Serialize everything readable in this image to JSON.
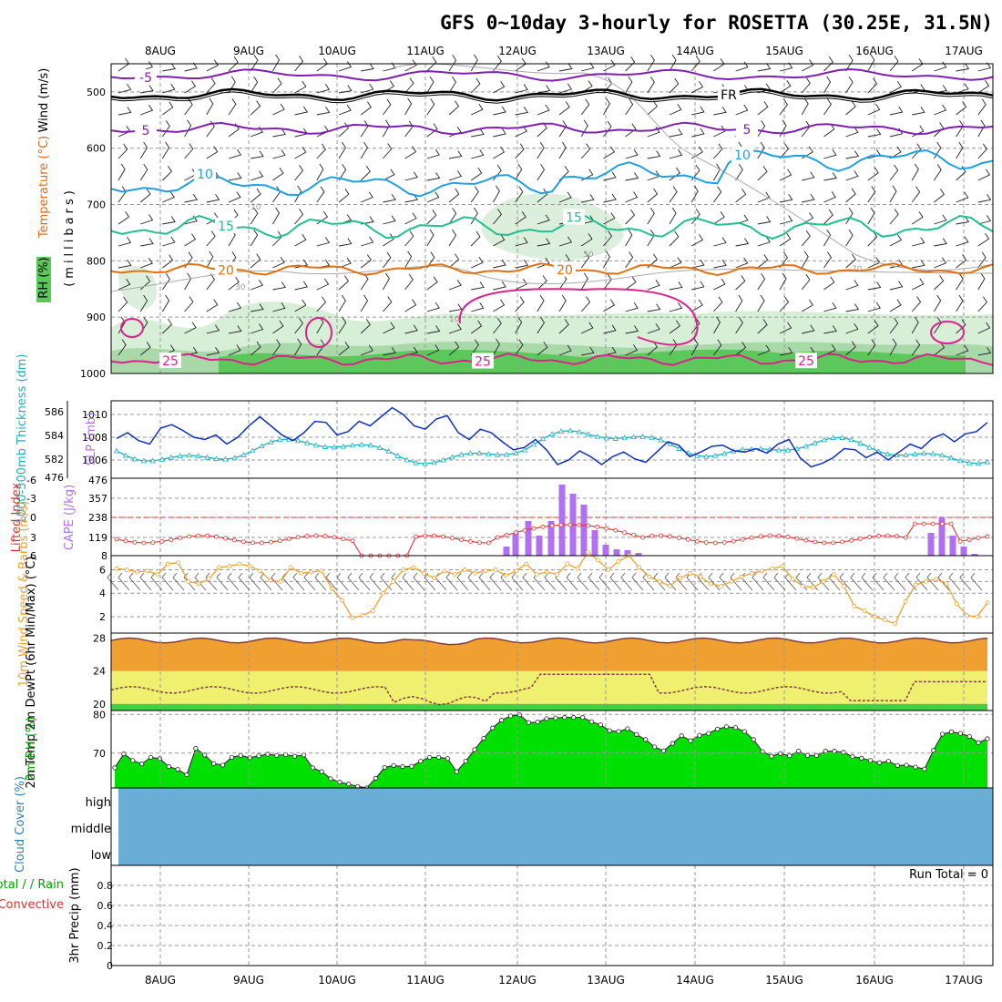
{
  "title": "GFS 0~10day 3-hourly for ROSETTA (30.25E, 31.5N)",
  "dates": [
    "8AUG",
    "9AUG",
    "10AUG",
    "11AUG",
    "12AUG",
    "13AUG",
    "14AUG",
    "15AUG",
    "16AUG",
    "17AUG"
  ],
  "colors": {
    "temp_label": "#e06a1a",
    "wind_label": "#000000",
    "rh_label": "#00a000",
    "slp": "#1030c0",
    "thickness": "#20b0c0",
    "lifted": "#e03030",
    "cape": "#b070f0",
    "wind10": "#f0a030",
    "t2m": "#f0a030",
    "dew": "#f0f070",
    "rh2m": "#00e000",
    "cloud": "#6aaed6",
    "precip_total": "#00a000",
    "precip_conv": "#e03030"
  },
  "chart_data": [
    {
      "type": "contour",
      "panel": "upper-air",
      "ylabel_parts": [
        "RH (%)",
        "Temperature (°C)",
        "Wind (m/s)"
      ],
      "ylabel_units": "(millibars)",
      "yticks": [
        500,
        600,
        700,
        800,
        900,
        1000
      ],
      "ylim": [
        450,
        1000
      ],
      "temperature_contours": [
        {
          "label": "-5",
          "color": "#8020b0",
          "level_mb": 470
        },
        {
          "label": "FR",
          "color": "#000000",
          "level_mb": 505
        },
        {
          "label": "5",
          "color": "#8020b0",
          "level_mb": 565
        },
        {
          "label": "10",
          "color": "#20a0e0",
          "level_mb": 665
        },
        {
          "label": "15",
          "color": "#20c090",
          "level_mb": 740
        },
        {
          "label": "20",
          "color": "#e07010",
          "level_mb": 815
        },
        {
          "label": "25",
          "color": "#e0208a",
          "level_mb": 975
        }
      ],
      "rh_labels": [
        "10",
        "30",
        "50",
        "70"
      ]
    },
    {
      "type": "line",
      "panel": "thickness-slp",
      "ylabel_left": "1000-500mb Thickness (dm)",
      "ylabel_right": "SLP (mb)",
      "yticks_left": [
        "586",
        "584",
        "582",
        "476"
      ],
      "yticks_right": [
        "1010",
        "1008",
        "1006"
      ],
      "ylim_slp": [
        1003.2,
        1011.5
      ],
      "x_hours": [
        0,
        3,
        6,
        9,
        12,
        15,
        18,
        21,
        24,
        27,
        30,
        33,
        36,
        39,
        42,
        45,
        48,
        51,
        54,
        57,
        60,
        63,
        66,
        69,
        72,
        75,
        78,
        81,
        84,
        87,
        90,
        93,
        96,
        99,
        102,
        105,
        108,
        111,
        114,
        117,
        120,
        123,
        126,
        129,
        132,
        135,
        138,
        141,
        144,
        147,
        150,
        153,
        156,
        159,
        162,
        165,
        168,
        171,
        174,
        177,
        180,
        183,
        186,
        189,
        192,
        195,
        198,
        201,
        204,
        207,
        210,
        213,
        216,
        219,
        222,
        225,
        228,
        231,
        234,
        237
      ],
      "series": [
        {
          "name": "SLP",
          "values": [
            1007.9,
            1008.4,
            1007.7,
            1007.4,
            1008.8,
            1009.1,
            1008.6,
            1008.0,
            1007.8,
            1008.2,
            1007.4,
            1008.0,
            1009.0,
            1009.8,
            1009.0,
            1008.2,
            1007.7,
            1008.4,
            1009.4,
            1009.3,
            1008.2,
            1008.5,
            1009.4,
            1009.0,
            1009.8,
            1010.6,
            1010.0,
            1009.0,
            1008.7,
            1009.6,
            1009.9,
            1008.4,
            1007.8,
            1008.7,
            1008.4,
            1007.6,
            1006.9,
            1007.1,
            1007.8,
            1006.9,
            1005.6,
            1006.0,
            1006.8,
            1006.3,
            1005.6,
            1006.3,
            1006.7,
            1006.1,
            1005.8,
            1006.7,
            1007.6,
            1007.3,
            1006.3,
            1006.7,
            1007.2,
            1007.3,
            1006.8,
            1006.7,
            1007.0,
            1006.6,
            1007.4,
            1007.8,
            1006.2,
            1005.4,
            1005.7,
            1006.2,
            1007.0,
            1006.9,
            1006.2,
            1006.7,
            1006.0,
            1006.7,
            1007.4,
            1007.0,
            1007.9,
            1008.3,
            1007.6,
            1008.3,
            1008.5,
            1009.3
          ]
        }
      ]
    },
    {
      "type": "bar",
      "panel": "cape-lifted-index",
      "ylabel_left": "Lifted Index",
      "ylabel_right": "CAPE (J/kg)",
      "yticks_left": [
        "-6",
        "-3",
        "0",
        "3",
        "6"
      ],
      "yticks_right": [
        "476",
        "357",
        "238",
        "119",
        "8"
      ]
    },
    {
      "type": "line",
      "panel": "wind10m",
      "ylabel": "10m Wind Speed & Barbs (m/s)",
      "yticks": [
        2,
        4,
        6
      ],
      "ylim": [
        0.6,
        7.2
      ],
      "series": [
        {
          "values": [
            6.1,
            6.0,
            5.8,
            5.9,
            5.6,
            6.5,
            6.6,
            5.0,
            4.8,
            5.2,
            6.2,
            6.3,
            6.5,
            6.3,
            5.9,
            5.1,
            5.0,
            6.2,
            5.7,
            5.8,
            5.9,
            4.4,
            3.4,
            1.9,
            2.1,
            2.5,
            4.0,
            5.0,
            6.0,
            6.2,
            5.7,
            5.3,
            5.9,
            5.6,
            6.0,
            5.7,
            5.9,
            6.0,
            5.5,
            5.9,
            6.5,
            5.6,
            5.8,
            5.6,
            6.5,
            6.1,
            7.5,
            6.8,
            6.0,
            6.7,
            7.2,
            6.2,
            5.4,
            5.0,
            4.6,
            5.3,
            5.7,
            5.4,
            4.8,
            4.6,
            5.0,
            5.4,
            5.7,
            5.9,
            6.1,
            6.3,
            5.2,
            4.6,
            4.5,
            5.0,
            5.6,
            4.6,
            2.9,
            2.5,
            2.0,
            1.7,
            1.4,
            3.3,
            4.7,
            5.0,
            5.2,
            4.8,
            3.1,
            2.1,
            2.0,
            3.2
          ]
        }
      ]
    },
    {
      "type": "area",
      "panel": "t2m-dewpt",
      "ylabel": "2m Temp 2m DewPt (6hr Min/Max) (°C)",
      "yticks": [
        20,
        24,
        28
      ],
      "ylim": [
        19.2,
        28.6
      ]
    },
    {
      "type": "area",
      "panel": "rh2m",
      "ylabel": "2m RH (%)",
      "yticks": [
        70,
        80
      ],
      "ylim": [
        61,
        81
      ],
      "series": [
        {
          "values": [
            66.2,
            69.8,
            68.1,
            67.2,
            68.9,
            68.6,
            66.5,
            65.8,
            64.4,
            71.2,
            69.5,
            67.3,
            66.9,
            68.9,
            69.4,
            68.8,
            69.3,
            69.7,
            69.4,
            69.6,
            69.2,
            69.5,
            66.2,
            65.2,
            63.4,
            62.5,
            62.0,
            61.4,
            61.0,
            63.5,
            66.3,
            66.8,
            66.5,
            66.6,
            67.9,
            68.9,
            68.9,
            68.6,
            65.2,
            67.9,
            70.9,
            73.8,
            76.5,
            78.5,
            79.6,
            79.9,
            77.9,
            78.0,
            78.9,
            79.1,
            79.2,
            79.2,
            79.2,
            78.1,
            77.3,
            75.8,
            75.6,
            76.3,
            74.8,
            73.5,
            71.6,
            70.6,
            72.5,
            74.5,
            73.2,
            74.6,
            75.1,
            76.2,
            76.8,
            76.6,
            75.6,
            73.5,
            70.4,
            69.2,
            69.9,
            69.3,
            70.5,
            69.4,
            69.4,
            70.5,
            70.5,
            70.2,
            69.1,
            68.7,
            68.1,
            67.5,
            67.9,
            66.8,
            66.9,
            66.4,
            65.9,
            70.7,
            74.9,
            75.5,
            75.1,
            74.3,
            72.7,
            73.7
          ]
        }
      ]
    },
    {
      "type": "area",
      "panel": "cloud-cover",
      "ylabel": "Cloud Cover (%)",
      "levels": [
        "high",
        "middle",
        "low"
      ]
    },
    {
      "type": "bar",
      "panel": "precip",
      "ylabel_left": "Total / Rain Convective",
      "ylabel": "3hr Precip (mm)",
      "yticks": [
        "0",
        "0.2",
        "0.4",
        "0.6",
        "0.8"
      ],
      "ylim": [
        0,
        1
      ],
      "run_total": "Run Total = 0"
    }
  ]
}
